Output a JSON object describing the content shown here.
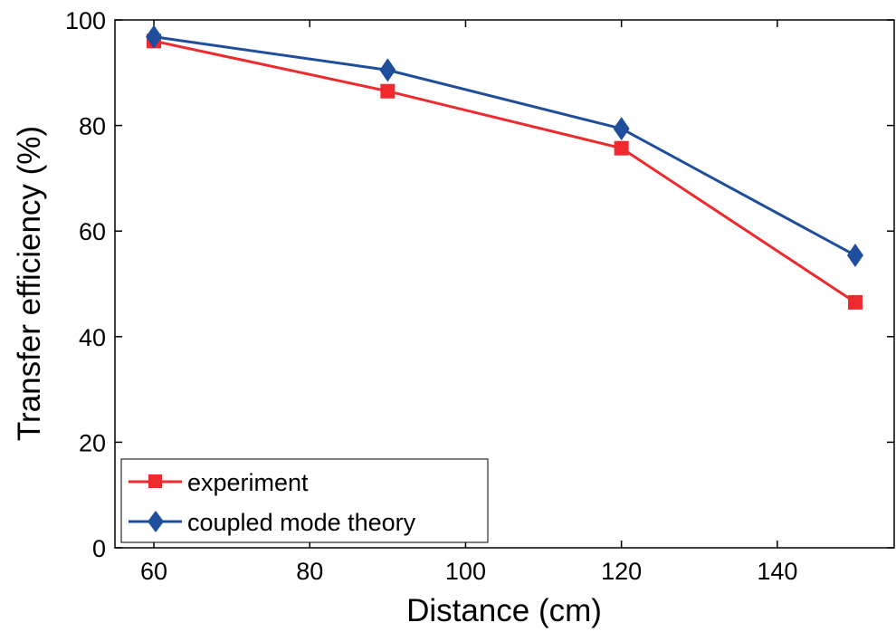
{
  "chart_data": {
    "type": "line",
    "title": "",
    "xlabel": "Distance (cm)",
    "ylabel": "Transfer efficiency (%)",
    "xlim": [
      55,
      155
    ],
    "ylim": [
      0,
      100
    ],
    "xticks": [
      60,
      80,
      100,
      120,
      140
    ],
    "yticks": [
      0,
      20,
      40,
      60,
      80,
      100
    ],
    "x": [
      60,
      90,
      120,
      150
    ],
    "grid": false,
    "legend_position": "bottom-left",
    "series": [
      {
        "name": "experiment",
        "values": [
          96,
          86.5,
          75.7,
          46.5
        ],
        "color": "#ee2a2e",
        "marker": "square"
      },
      {
        "name": "coupled mode theory",
        "values": [
          96.8,
          90.5,
          79.4,
          55.4
        ],
        "color": "#1f4e9c",
        "marker": "diamond"
      }
    ]
  }
}
